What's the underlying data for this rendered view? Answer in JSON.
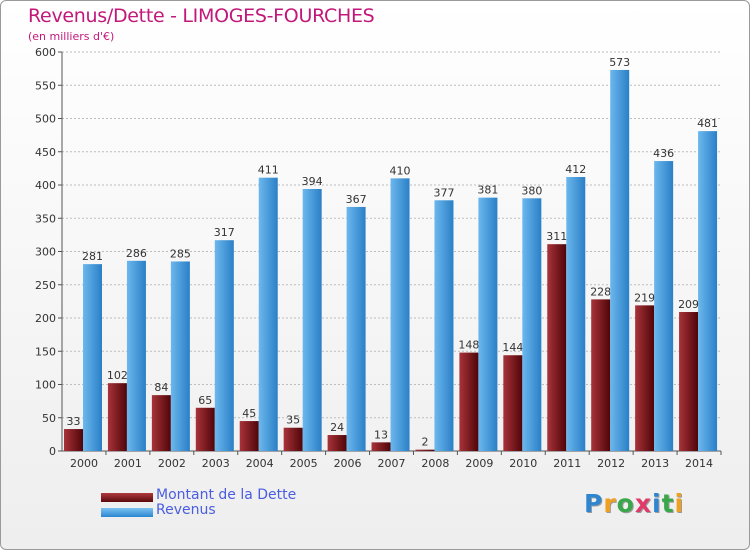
{
  "chart_data": {
    "type": "bar",
    "title": "Revenus/Dette - LIMOGES-FOURCHES",
    "subtitle": "(en milliers d'€)",
    "categories": [
      "2000",
      "2001",
      "2002",
      "2003",
      "2004",
      "2005",
      "2006",
      "2007",
      "2008",
      "2009",
      "2010",
      "2011",
      "2012",
      "2013",
      "2014"
    ],
    "series": [
      {
        "name": "Montant de la Dette",
        "color": "#7b1016",
        "values": [
          33,
          102,
          84,
          65,
          45,
          35,
          24,
          13,
          2,
          148,
          144,
          311,
          228,
          219,
          209
        ]
      },
      {
        "name": "Revenus",
        "color": "#4aa3e4",
        "values": [
          281,
          286,
          285,
          317,
          411,
          394,
          367,
          410,
          377,
          381,
          380,
          412,
          573,
          436,
          481
        ]
      }
    ],
    "ylim": [
      0,
      600
    ],
    "ytick_step": 50,
    "grid": true,
    "legend_position": "bottom-left"
  },
  "logo": {
    "letters": [
      "P",
      "r",
      "o",
      "x",
      "i",
      "t",
      "i"
    ],
    "colors": [
      "#2f86d0",
      "#f0a020",
      "#3aa84a",
      "#e03a6a",
      "#2f86d0",
      "#3aa84a",
      "#f0a020"
    ]
  }
}
